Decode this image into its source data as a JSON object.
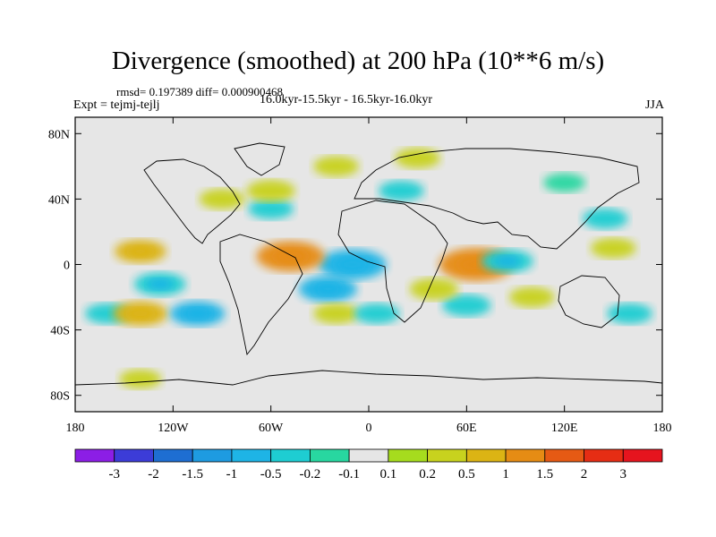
{
  "chart_data": {
    "type": "heatmap",
    "title": "Divergence (smoothed) at 200 hPa (10**6 m/s)",
    "stats_text": "rmsd= 0.197389 diff= 0.000900468",
    "experiment_text": "Expt = tejmj-tejlj",
    "period_text": "16.0kyr-15.5kyr - 16.5kyr-16.0kyr",
    "season": "JJA",
    "x_axis": {
      "range": [
        -180,
        180
      ],
      "ticks": [
        -180,
        -120,
        -60,
        0,
        60,
        120,
        180
      ],
      "tick_labels": [
        "180",
        "120W",
        "60W",
        "0",
        "60E",
        "120E",
        "180"
      ]
    },
    "y_axis": {
      "range": [
        -90,
        90
      ],
      "ticks": [
        80,
        40,
        0,
        -40,
        -80
      ],
      "tick_labels": [
        "80N",
        "40N",
        "0",
        "40S",
        "80S"
      ]
    },
    "colorbar": {
      "labels": [
        "-3",
        "-2",
        "-1.5",
        "-1",
        "-0.5",
        "-0.2",
        "-0.1",
        "0.1",
        "0.2",
        "0.5",
        "1",
        "1.5",
        "2",
        "3"
      ],
      "colors": [
        "#8c1ee6",
        "#3c3cd8",
        "#1e6ed2",
        "#1e9be1",
        "#1eb4e6",
        "#1ecdd2",
        "#28d7a0",
        "#e6e6e6",
        "#a6dc1e",
        "#c8d21e",
        "#dcb414",
        "#e68c14",
        "#e65a14",
        "#e62d14",
        "#e6141e"
      ]
    },
    "features": [
      {
        "lon": -10,
        "lat": 0,
        "value": -1.0
      },
      {
        "lon": -25,
        "lat": -15,
        "value": -0.7
      },
      {
        "lon": -48,
        "lat": 5,
        "value": 1.0
      },
      {
        "lon": 66,
        "lat": 0,
        "value": 1.2
      },
      {
        "lon": 85,
        "lat": 2,
        "value": -0.5
      },
      {
        "lon": -140,
        "lat": 8,
        "value": 0.5
      },
      {
        "lon": -128,
        "lat": -12,
        "value": -0.5
      },
      {
        "lon": -160,
        "lat": -30,
        "value": -0.3
      },
      {
        "lon": -140,
        "lat": -30,
        "value": 0.6
      },
      {
        "lon": -105,
        "lat": -30,
        "value": -0.6
      },
      {
        "lon": -60,
        "lat": 34,
        "value": -0.3
      },
      {
        "lon": -90,
        "lat": 40,
        "value": 0.3
      },
      {
        "lon": 60,
        "lat": -25,
        "value": -0.4
      },
      {
        "lon": 40,
        "lat": -15,
        "value": 0.4
      },
      {
        "lon": 100,
        "lat": -20,
        "value": 0.3
      },
      {
        "lon": 150,
        "lat": 10,
        "value": 0.3
      },
      {
        "lon": 145,
        "lat": 28,
        "value": -0.3
      },
      {
        "lon": 160,
        "lat": -30,
        "value": -0.3
      },
      {
        "lon": 20,
        "lat": 45,
        "value": -0.3
      },
      {
        "lon": 30,
        "lat": 65,
        "value": 0.3
      },
      {
        "lon": -60,
        "lat": 45,
        "value": 0.4
      },
      {
        "lon": -20,
        "lat": 60,
        "value": 0.3
      },
      {
        "lon": 120,
        "lat": 50,
        "value": -0.2
      },
      {
        "lon": -140,
        "lat": -70,
        "value": 0.2
      },
      {
        "lon": -20,
        "lat": -30,
        "value": 0.3
      },
      {
        "lon": 5,
        "lat": -30,
        "value": -0.3
      }
    ]
  }
}
